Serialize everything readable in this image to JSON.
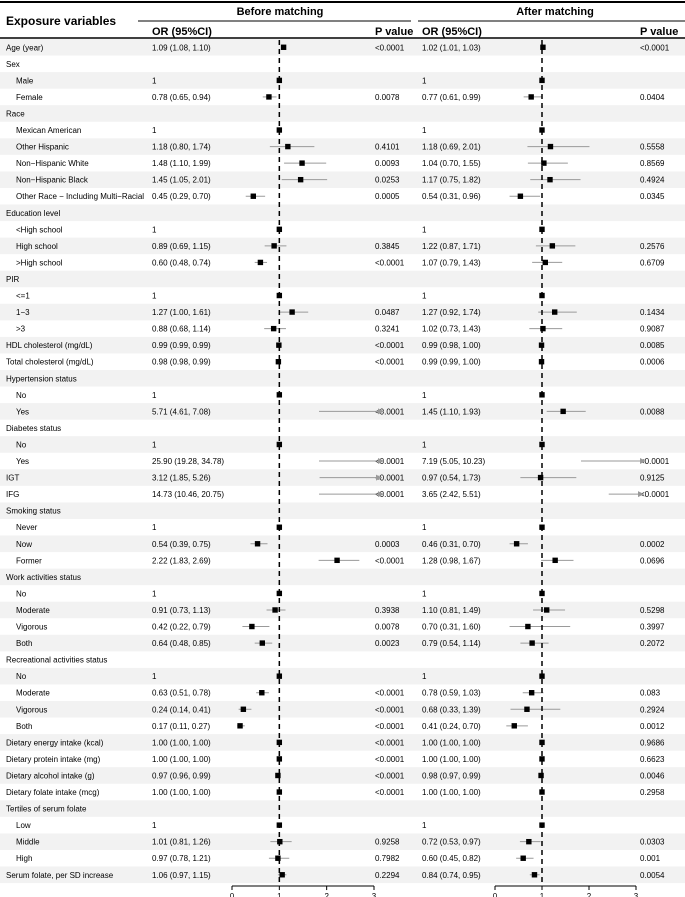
{
  "table": {
    "header_var": "Exposure variables",
    "before_label": "Before matching",
    "after_label": "After matching",
    "or_label": "OR (95%CI)",
    "p_label": "P value"
  },
  "chart_data": {
    "type": "forest",
    "reference_line": 1,
    "xlim": [
      0,
      3
    ],
    "ticks": [
      0,
      1,
      2,
      3
    ],
    "rows": [
      {
        "label": "Age (year)",
        "indent": false,
        "before": {
          "or_text": "1.09 (1.08, 1.10)",
          "p": "<0.0001",
          "est": 1.09,
          "lo": 1.08,
          "hi": 1.1
        },
        "after": {
          "or_text": "1.02 (1.01, 1.03)",
          "p": "<0.0001",
          "est": 1.02,
          "lo": 1.01,
          "hi": 1.03
        }
      },
      {
        "label": "Sex",
        "indent": false,
        "header": true
      },
      {
        "label": "Male",
        "indent": true,
        "before": {
          "or_text": "1",
          "p": "",
          "est": 1,
          "lo": 1,
          "hi": 1
        },
        "after": {
          "or_text": "1",
          "p": "",
          "est": 1,
          "lo": 1,
          "hi": 1
        }
      },
      {
        "label": "Female",
        "indent": true,
        "before": {
          "or_text": "0.78 (0.65, 0.94)",
          "p": "0.0078",
          "est": 0.78,
          "lo": 0.65,
          "hi": 0.94
        },
        "after": {
          "or_text": "0.77 (0.61, 0.99)",
          "p": "0.0404",
          "est": 0.77,
          "lo": 0.61,
          "hi": 0.99
        }
      },
      {
        "label": "Race",
        "indent": false,
        "header": true
      },
      {
        "label": "Mexican American",
        "indent": true,
        "before": {
          "or_text": "1",
          "p": "",
          "est": 1,
          "lo": 1,
          "hi": 1
        },
        "after": {
          "or_text": "1",
          "p": "",
          "est": 1,
          "lo": 1,
          "hi": 1
        }
      },
      {
        "label": "Other Hispanic",
        "indent": true,
        "before": {
          "or_text": "1.18 (0.80, 1.74)",
          "p": "0.4101",
          "est": 1.18,
          "lo": 0.8,
          "hi": 1.74
        },
        "after": {
          "or_text": "1.18 (0.69, 2.01)",
          "p": "0.5558",
          "est": 1.18,
          "lo": 0.69,
          "hi": 2.01
        }
      },
      {
        "label": "Non−Hispanic White",
        "indent": true,
        "before": {
          "or_text": "1.48 (1.10, 1.99)",
          "p": "0.0093",
          "est": 1.48,
          "lo": 1.1,
          "hi": 1.99
        },
        "after": {
          "or_text": "1.04 (0.70, 1.55)",
          "p": "0.8569",
          "est": 1.04,
          "lo": 0.7,
          "hi": 1.55
        }
      },
      {
        "label": "Non−Hispanic Black",
        "indent": true,
        "before": {
          "or_text": "1.45 (1.05, 2.01)",
          "p": "0.0253",
          "est": 1.45,
          "lo": 1.05,
          "hi": 2.01
        },
        "after": {
          "or_text": "1.17 (0.75, 1.82)",
          "p": "0.4924",
          "est": 1.17,
          "lo": 0.75,
          "hi": 1.82
        }
      },
      {
        "label": "Other Race − Including Multi−Racial",
        "indent": true,
        "before": {
          "or_text": "0.45 (0.29, 0.70)",
          "p": "0.0005",
          "est": 0.45,
          "lo": 0.29,
          "hi": 0.7
        },
        "after": {
          "or_text": "0.54 (0.31, 0.96)",
          "p": "0.0345",
          "est": 0.54,
          "lo": 0.31,
          "hi": 0.96
        }
      },
      {
        "label": "Education level",
        "indent": false,
        "header": true
      },
      {
        "label": "<High school",
        "indent": true,
        "before": {
          "or_text": "1",
          "p": "",
          "est": 1,
          "lo": 1,
          "hi": 1
        },
        "after": {
          "or_text": "1",
          "p": "",
          "est": 1,
          "lo": 1,
          "hi": 1
        }
      },
      {
        "label": "High school",
        "indent": true,
        "before": {
          "or_text": "0.89 (0.69, 1.15)",
          "p": "0.3845",
          "est": 0.89,
          "lo": 0.69,
          "hi": 1.15
        },
        "after": {
          "or_text": "1.22 (0.87, 1.71)",
          "p": "0.2576",
          "est": 1.22,
          "lo": 0.87,
          "hi": 1.71
        }
      },
      {
        "label": ">High school",
        "indent": true,
        "before": {
          "or_text": "0.60 (0.48, 0.74)",
          "p": "<0.0001",
          "est": 0.6,
          "lo": 0.48,
          "hi": 0.74
        },
        "after": {
          "or_text": "1.07 (0.79, 1.43)",
          "p": "0.6709",
          "est": 1.07,
          "lo": 0.79,
          "hi": 1.43
        }
      },
      {
        "label": "PIR",
        "indent": false,
        "header": true
      },
      {
        "label": "<=1",
        "indent": true,
        "before": {
          "or_text": "1",
          "p": "",
          "est": 1,
          "lo": 1,
          "hi": 1
        },
        "after": {
          "or_text": "1",
          "p": "",
          "est": 1,
          "lo": 1,
          "hi": 1
        }
      },
      {
        "label": "1−3",
        "indent": true,
        "before": {
          "or_text": "1.27 (1.00, 1.61)",
          "p": "0.0487",
          "est": 1.27,
          "lo": 1.0,
          "hi": 1.61
        },
        "after": {
          "or_text": "1.27 (0.92, 1.74)",
          "p": "0.1434",
          "est": 1.27,
          "lo": 0.92,
          "hi": 1.74
        }
      },
      {
        "label": ">3",
        "indent": true,
        "before": {
          "or_text": "0.88 (0.68, 1.14)",
          "p": "0.3241",
          "est": 0.88,
          "lo": 0.68,
          "hi": 1.14
        },
        "after": {
          "or_text": "1.02 (0.73, 1.43)",
          "p": "0.9087",
          "est": 1.02,
          "lo": 0.73,
          "hi": 1.43
        }
      },
      {
        "label": "HDL cholesterol (mg/dL)",
        "indent": false,
        "before": {
          "or_text": "0.99 (0.99, 0.99)",
          "p": "<0.0001",
          "est": 0.99,
          "lo": 0.99,
          "hi": 0.99
        },
        "after": {
          "or_text": "0.99 (0.98, 1.00)",
          "p": "0.0085",
          "est": 0.99,
          "lo": 0.98,
          "hi": 1.0
        }
      },
      {
        "label": "Total cholesterol (mg/dL)",
        "indent": false,
        "before": {
          "or_text": "0.98 (0.98, 0.99)",
          "p": "<0.0001",
          "est": 0.98,
          "lo": 0.98,
          "hi": 0.99
        },
        "after": {
          "or_text": "0.99 (0.99, 1.00)",
          "p": "0.0006",
          "est": 0.99,
          "lo": 0.99,
          "hi": 1.0
        }
      },
      {
        "label": "Hypertension status",
        "indent": false,
        "header": true
      },
      {
        "label": "No",
        "indent": true,
        "before": {
          "or_text": "1",
          "p": "",
          "est": 1,
          "lo": 1,
          "hi": 1
        },
        "after": {
          "or_text": "1",
          "p": "",
          "est": 1,
          "lo": 1,
          "hi": 1
        }
      },
      {
        "label": "Yes",
        "indent": true,
        "before": {
          "or_text": "5.71 (4.61, 7.08)",
          "p": "<0.0001",
          "est": 5.71,
          "lo": 4.61,
          "hi": 7.08
        },
        "after": {
          "or_text": "1.45 (1.10, 1.93)",
          "p": "0.0088",
          "est": 1.45,
          "lo": 1.1,
          "hi": 1.93
        }
      },
      {
        "label": "Diabetes status",
        "indent": false,
        "header": true
      },
      {
        "label": "No",
        "indent": true,
        "before": {
          "or_text": "1",
          "p": "",
          "est": 1,
          "lo": 1,
          "hi": 1
        },
        "after": {
          "or_text": "1",
          "p": "",
          "est": 1,
          "lo": 1,
          "hi": 1
        }
      },
      {
        "label": "Yes",
        "indent": true,
        "before": {
          "or_text": "25.90 (19.28, 34.78)",
          "p": "<0.0001",
          "est": 25.9,
          "lo": 19.28,
          "hi": 34.78
        },
        "after": {
          "or_text": "7.19 (5.05, 10.23)",
          "p": "<0.0001",
          "est": 7.19,
          "lo": 5.05,
          "hi": 10.23
        }
      },
      {
        "label": "IGT",
        "indent": false,
        "before": {
          "or_text": "3.12 (1.85, 5.26)",
          "p": "<0.0001",
          "est": 3.12,
          "lo": 1.85,
          "hi": 5.26
        },
        "after": {
          "or_text": "0.97 (0.54, 1.73)",
          "p": "0.9125",
          "est": 0.97,
          "lo": 0.54,
          "hi": 1.73
        }
      },
      {
        "label": "IFG",
        "indent": false,
        "before": {
          "or_text": "14.73 (10.46, 20.75)",
          "p": "<0.0001",
          "est": 14.73,
          "lo": 10.46,
          "hi": 20.75
        },
        "after": {
          "or_text": "3.65 (2.42, 5.51)",
          "p": "<0.0001",
          "est": 3.65,
          "lo": 2.42,
          "hi": 5.51
        }
      },
      {
        "label": "Smoking status",
        "indent": false,
        "header": true
      },
      {
        "label": "Never",
        "indent": true,
        "before": {
          "or_text": "1",
          "p": "",
          "est": 1,
          "lo": 1,
          "hi": 1
        },
        "after": {
          "or_text": "1",
          "p": "",
          "est": 1,
          "lo": 1,
          "hi": 1
        }
      },
      {
        "label": "Now",
        "indent": true,
        "before": {
          "or_text": "0.54 (0.39, 0.75)",
          "p": "0.0003",
          "est": 0.54,
          "lo": 0.39,
          "hi": 0.75
        },
        "after": {
          "or_text": "0.46 (0.31, 0.70)",
          "p": "0.0002",
          "est": 0.46,
          "lo": 0.31,
          "hi": 0.7
        }
      },
      {
        "label": "Former",
        "indent": true,
        "before": {
          "or_text": "2.22 (1.83, 2.69)",
          "p": "<0.0001",
          "est": 2.22,
          "lo": 1.83,
          "hi": 2.69
        },
        "after": {
          "or_text": "1.28 (0.98, 1.67)",
          "p": "0.0696",
          "est": 1.28,
          "lo": 0.98,
          "hi": 1.67
        }
      },
      {
        "label": "Work activities status",
        "indent": false,
        "header": true
      },
      {
        "label": "No",
        "indent": true,
        "before": {
          "or_text": "1",
          "p": "",
          "est": 1,
          "lo": 1,
          "hi": 1
        },
        "after": {
          "or_text": "1",
          "p": "",
          "est": 1,
          "lo": 1,
          "hi": 1
        }
      },
      {
        "label": "Moderate",
        "indent": true,
        "before": {
          "or_text": "0.91 (0.73, 1.13)",
          "p": "0.3938",
          "est": 0.91,
          "lo": 0.73,
          "hi": 1.13
        },
        "after": {
          "or_text": "1.10 (0.81, 1.49)",
          "p": "0.5298",
          "est": 1.1,
          "lo": 0.81,
          "hi": 1.49
        }
      },
      {
        "label": "Vigorous",
        "indent": true,
        "before": {
          "or_text": "0.42 (0.22, 0.79)",
          "p": "0.0078",
          "est": 0.42,
          "lo": 0.22,
          "hi": 0.79
        },
        "after": {
          "or_text": "0.70 (0.31, 1.60)",
          "p": "0.3997",
          "est": 0.7,
          "lo": 0.31,
          "hi": 1.6
        }
      },
      {
        "label": "Both",
        "indent": true,
        "before": {
          "or_text": "0.64 (0.48, 0.85)",
          "p": "0.0023",
          "est": 0.64,
          "lo": 0.48,
          "hi": 0.85
        },
        "after": {
          "or_text": "0.79 (0.54, 1.14)",
          "p": "0.2072",
          "est": 0.79,
          "lo": 0.54,
          "hi": 1.14
        }
      },
      {
        "label": "Recreational activities status",
        "indent": false,
        "header": true
      },
      {
        "label": "No",
        "indent": true,
        "before": {
          "or_text": "1",
          "p": "",
          "est": 1,
          "lo": 1,
          "hi": 1
        },
        "after": {
          "or_text": "1",
          "p": "",
          "est": 1,
          "lo": 1,
          "hi": 1
        }
      },
      {
        "label": "Moderate",
        "indent": true,
        "before": {
          "or_text": "0.63 (0.51, 0.78)",
          "p": "<0.0001",
          "est": 0.63,
          "lo": 0.51,
          "hi": 0.78
        },
        "after": {
          "or_text": "0.78 (0.59, 1.03)",
          "p": "0.083",
          "est": 0.78,
          "lo": 0.59,
          "hi": 1.03
        }
      },
      {
        "label": "Vigorous",
        "indent": true,
        "before": {
          "or_text": "0.24 (0.14, 0.41)",
          "p": "<0.0001",
          "est": 0.24,
          "lo": 0.14,
          "hi": 0.41
        },
        "after": {
          "or_text": "0.68 (0.33, 1.39)",
          "p": "0.2924",
          "est": 0.68,
          "lo": 0.33,
          "hi": 1.39
        }
      },
      {
        "label": "Both",
        "indent": true,
        "before": {
          "or_text": "0.17 (0.11, 0.27)",
          "p": "<0.0001",
          "est": 0.17,
          "lo": 0.11,
          "hi": 0.27
        },
        "after": {
          "or_text": "0.41 (0.24, 0.70)",
          "p": "0.0012",
          "est": 0.41,
          "lo": 0.24,
          "hi": 0.7
        }
      },
      {
        "label": "Dietary energy intake (kcal)",
        "indent": false,
        "before": {
          "or_text": "1.00 (1.00, 1.00)",
          "p": "<0.0001",
          "est": 1.0,
          "lo": 1.0,
          "hi": 1.0
        },
        "after": {
          "or_text": "1.00 (1.00, 1.00)",
          "p": "0.9686",
          "est": 1.0,
          "lo": 1.0,
          "hi": 1.0
        }
      },
      {
        "label": "Dietary protein intake (mg)",
        "indent": false,
        "before": {
          "or_text": "1.00 (1.00, 1.00)",
          "p": "<0.0001",
          "est": 1.0,
          "lo": 1.0,
          "hi": 1.0
        },
        "after": {
          "or_text": "1.00 (1.00, 1.00)",
          "p": "0.6623",
          "est": 1.0,
          "lo": 1.0,
          "hi": 1.0
        }
      },
      {
        "label": "Dietary alcohol intake (g)",
        "indent": false,
        "before": {
          "or_text": "0.97 (0.96, 0.99)",
          "p": "<0.0001",
          "est": 0.97,
          "lo": 0.96,
          "hi": 0.99
        },
        "after": {
          "or_text": "0.98 (0.97, 0.99)",
          "p": "0.0046",
          "est": 0.98,
          "lo": 0.97,
          "hi": 0.99
        }
      },
      {
        "label": "Dietary folate intake (mcg)",
        "indent": false,
        "before": {
          "or_text": "1.00 (1.00, 1.00)",
          "p": "<0.0001",
          "est": 1.0,
          "lo": 1.0,
          "hi": 1.0
        },
        "after": {
          "or_text": "1.00 (1.00, 1.00)",
          "p": "0.2958",
          "est": 1.0,
          "lo": 1.0,
          "hi": 1.0
        }
      },
      {
        "label": "Tertiles of serum folate",
        "indent": false,
        "header": true
      },
      {
        "label": "Low",
        "indent": true,
        "before": {
          "or_text": "1",
          "p": "",
          "est": 1,
          "lo": 1,
          "hi": 1
        },
        "after": {
          "or_text": "1",
          "p": "",
          "est": 1,
          "lo": 1,
          "hi": 1
        }
      },
      {
        "label": "Middle",
        "indent": true,
        "before": {
          "or_text": "1.01 (0.81, 1.26)",
          "p": "0.9258",
          "est": 1.01,
          "lo": 0.81,
          "hi": 1.26
        },
        "after": {
          "or_text": "0.72 (0.53, 0.97)",
          "p": "0.0303",
          "est": 0.72,
          "lo": 0.53,
          "hi": 0.97
        }
      },
      {
        "label": "High",
        "indent": true,
        "before": {
          "or_text": "0.97 (0.78, 1.21)",
          "p": "0.7982",
          "est": 0.97,
          "lo": 0.78,
          "hi": 1.21
        },
        "after": {
          "or_text": "0.60 (0.45, 0.82)",
          "p": "0.001",
          "est": 0.6,
          "lo": 0.45,
          "hi": 0.82
        }
      },
      {
        "label": "Serum folate, per SD increase",
        "indent": false,
        "before": {
          "or_text": "1.06 (0.97, 1.15)",
          "p": "0.2294",
          "est": 1.06,
          "lo": 0.97,
          "hi": 1.15
        },
        "after": {
          "or_text": "0.84 (0.74, 0.95)",
          "p": "0.0054",
          "est": 0.84,
          "lo": 0.74,
          "hi": 0.95
        }
      }
    ]
  }
}
